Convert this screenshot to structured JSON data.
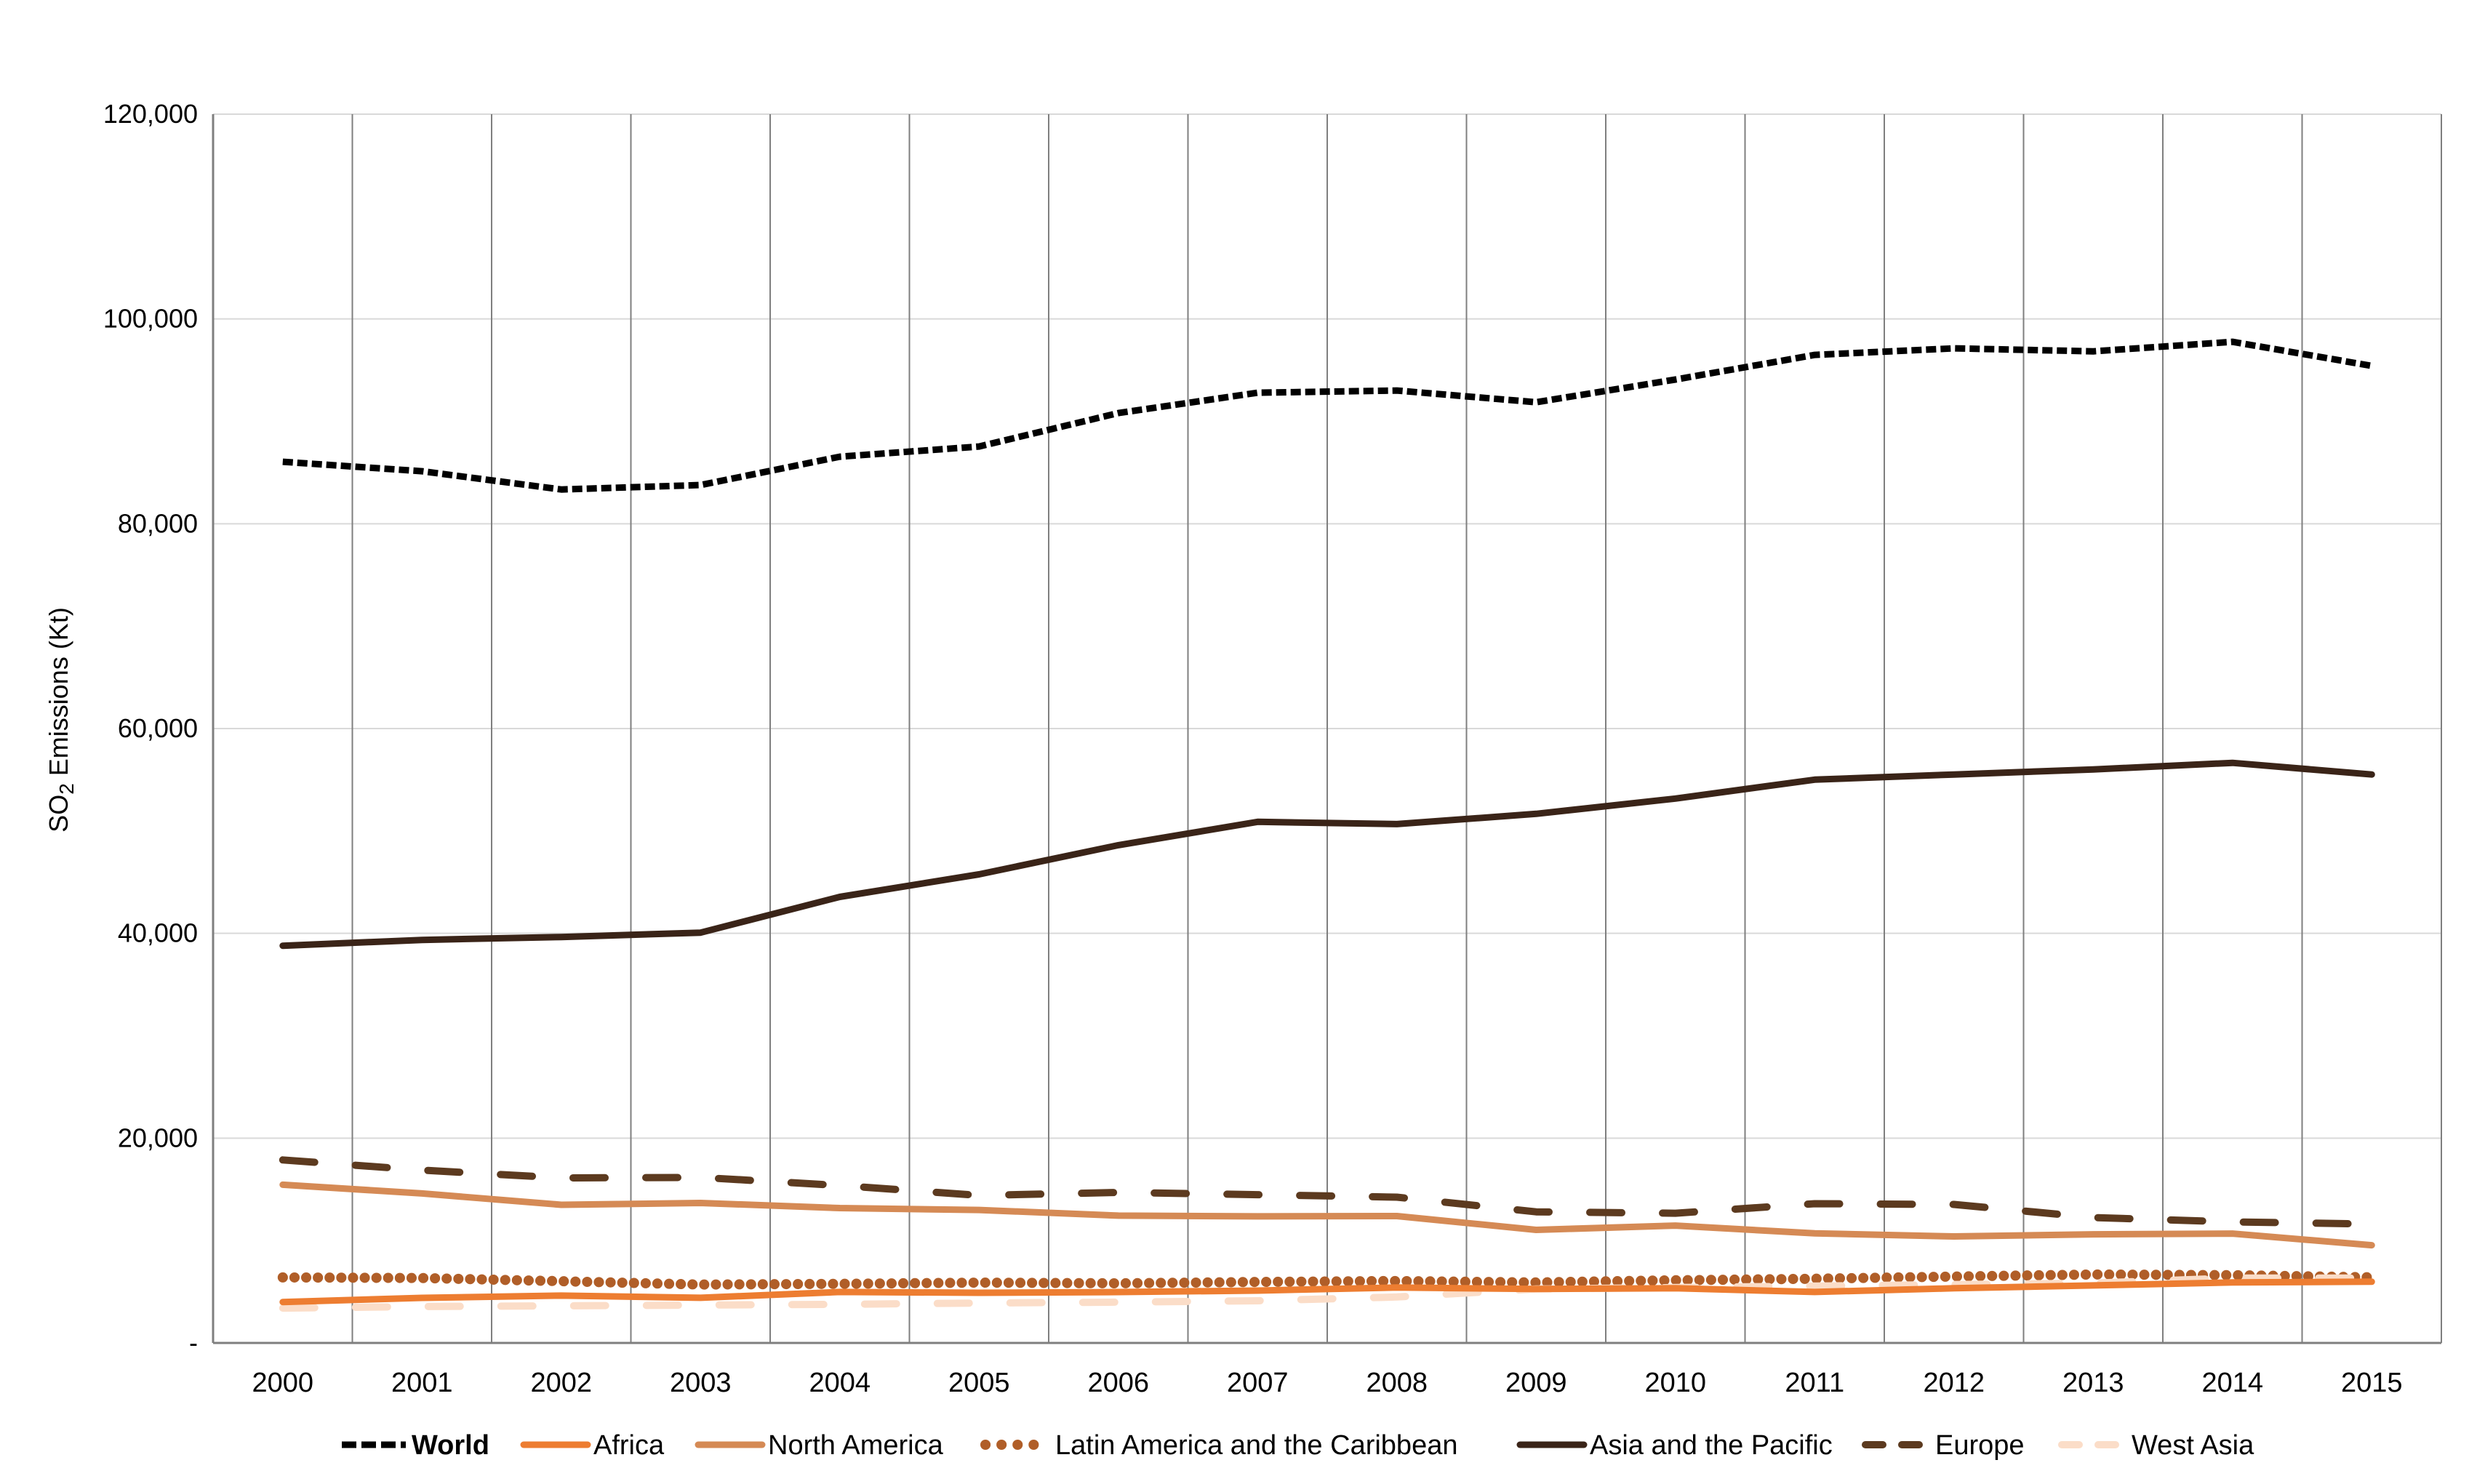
{
  "chart_data": {
    "type": "line",
    "title": "",
    "xlabel": "",
    "ylabel": "SO2 Emissions (Kt)",
    "ylabel_parts": {
      "main": "SO",
      "sub": "2",
      "rest": " Emissions (Kt)"
    },
    "ylim": [
      0,
      120000
    ],
    "yticks": [
      0,
      20000,
      40000,
      60000,
      80000,
      100000,
      120000
    ],
    "ytick_labels": [
      "-",
      "20,000",
      "40,000",
      "60,000",
      "80,000",
      "100,000",
      "120,000"
    ],
    "grid": {
      "horizontal": true,
      "vertical": true
    },
    "legend_position": "bottom",
    "categories": [
      "2000",
      "2001",
      "2002",
      "2003",
      "2004",
      "2005",
      "2006",
      "2007",
      "2008",
      "2009",
      "2010",
      "2011",
      "2012",
      "2013",
      "2014",
      "2015"
    ],
    "series": [
      {
        "name": "World",
        "bold": true,
        "color": "#000000",
        "style": "dotted-dash",
        "values": [
          86050,
          85130,
          83350,
          83780,
          86550,
          87540,
          90810,
          92800,
          93010,
          91870,
          94080,
          96490,
          97130,
          96840,
          97770,
          95420
        ]
      },
      {
        "name": "Africa",
        "bold": false,
        "color": "#ED7D31",
        "style": "solid",
        "values": [
          4000,
          4400,
          4620,
          4410,
          4980,
          4900,
          4970,
          5110,
          5410,
          5270,
          5340,
          4980,
          5340,
          5620,
          5910,
          5980
        ]
      },
      {
        "name": "North America",
        "bold": false,
        "color": "#D58A55",
        "style": "solid",
        "values": [
          15450,
          14600,
          13490,
          13670,
          13170,
          12990,
          12430,
          12360,
          12390,
          11040,
          11460,
          10700,
          10400,
          10610,
          10680,
          9540
        ]
      },
      {
        "name": "Latin America and the Caribbean",
        "bold": false,
        "color": "#B05E28",
        "style": "dotted",
        "values": [
          6400,
          6340,
          6030,
          5700,
          5770,
          5890,
          5820,
          5960,
          6050,
          5910,
          6120,
          6270,
          6480,
          6690,
          6620,
          6410
        ]
      },
      {
        "name": "Asia and the Pacific",
        "bold": false,
        "color": "#3A2418",
        "style": "solid",
        "values": [
          38790,
          39360,
          39640,
          40070,
          43560,
          45760,
          48610,
          50890,
          50670,
          51670,
          53160,
          55010,
          55510,
          56010,
          56650,
          55510
        ]
      },
      {
        "name": "Europe",
        "bold": false,
        "color": "#5C3A1F",
        "style": "dash",
        "values": [
          17870,
          16880,
          16120,
          16160,
          15380,
          14410,
          14700,
          14480,
          14240,
          12800,
          12670,
          13600,
          13530,
          12250,
          11820,
          11610
        ]
      },
      {
        "name": "West Asia",
        "bold": false,
        "color": "#FBDDC8",
        "style": "dash",
        "values": [
          3400,
          3560,
          3620,
          3700,
          3770,
          3900,
          3980,
          4120,
          4490,
          5270,
          5410,
          5550,
          5700,
          5840,
          6340,
          6340
        ]
      }
    ]
  },
  "colors": {
    "gridline": "#D9D9D9",
    "category_divider": "#7F7F7F",
    "axis": "#7F7F7F"
  }
}
